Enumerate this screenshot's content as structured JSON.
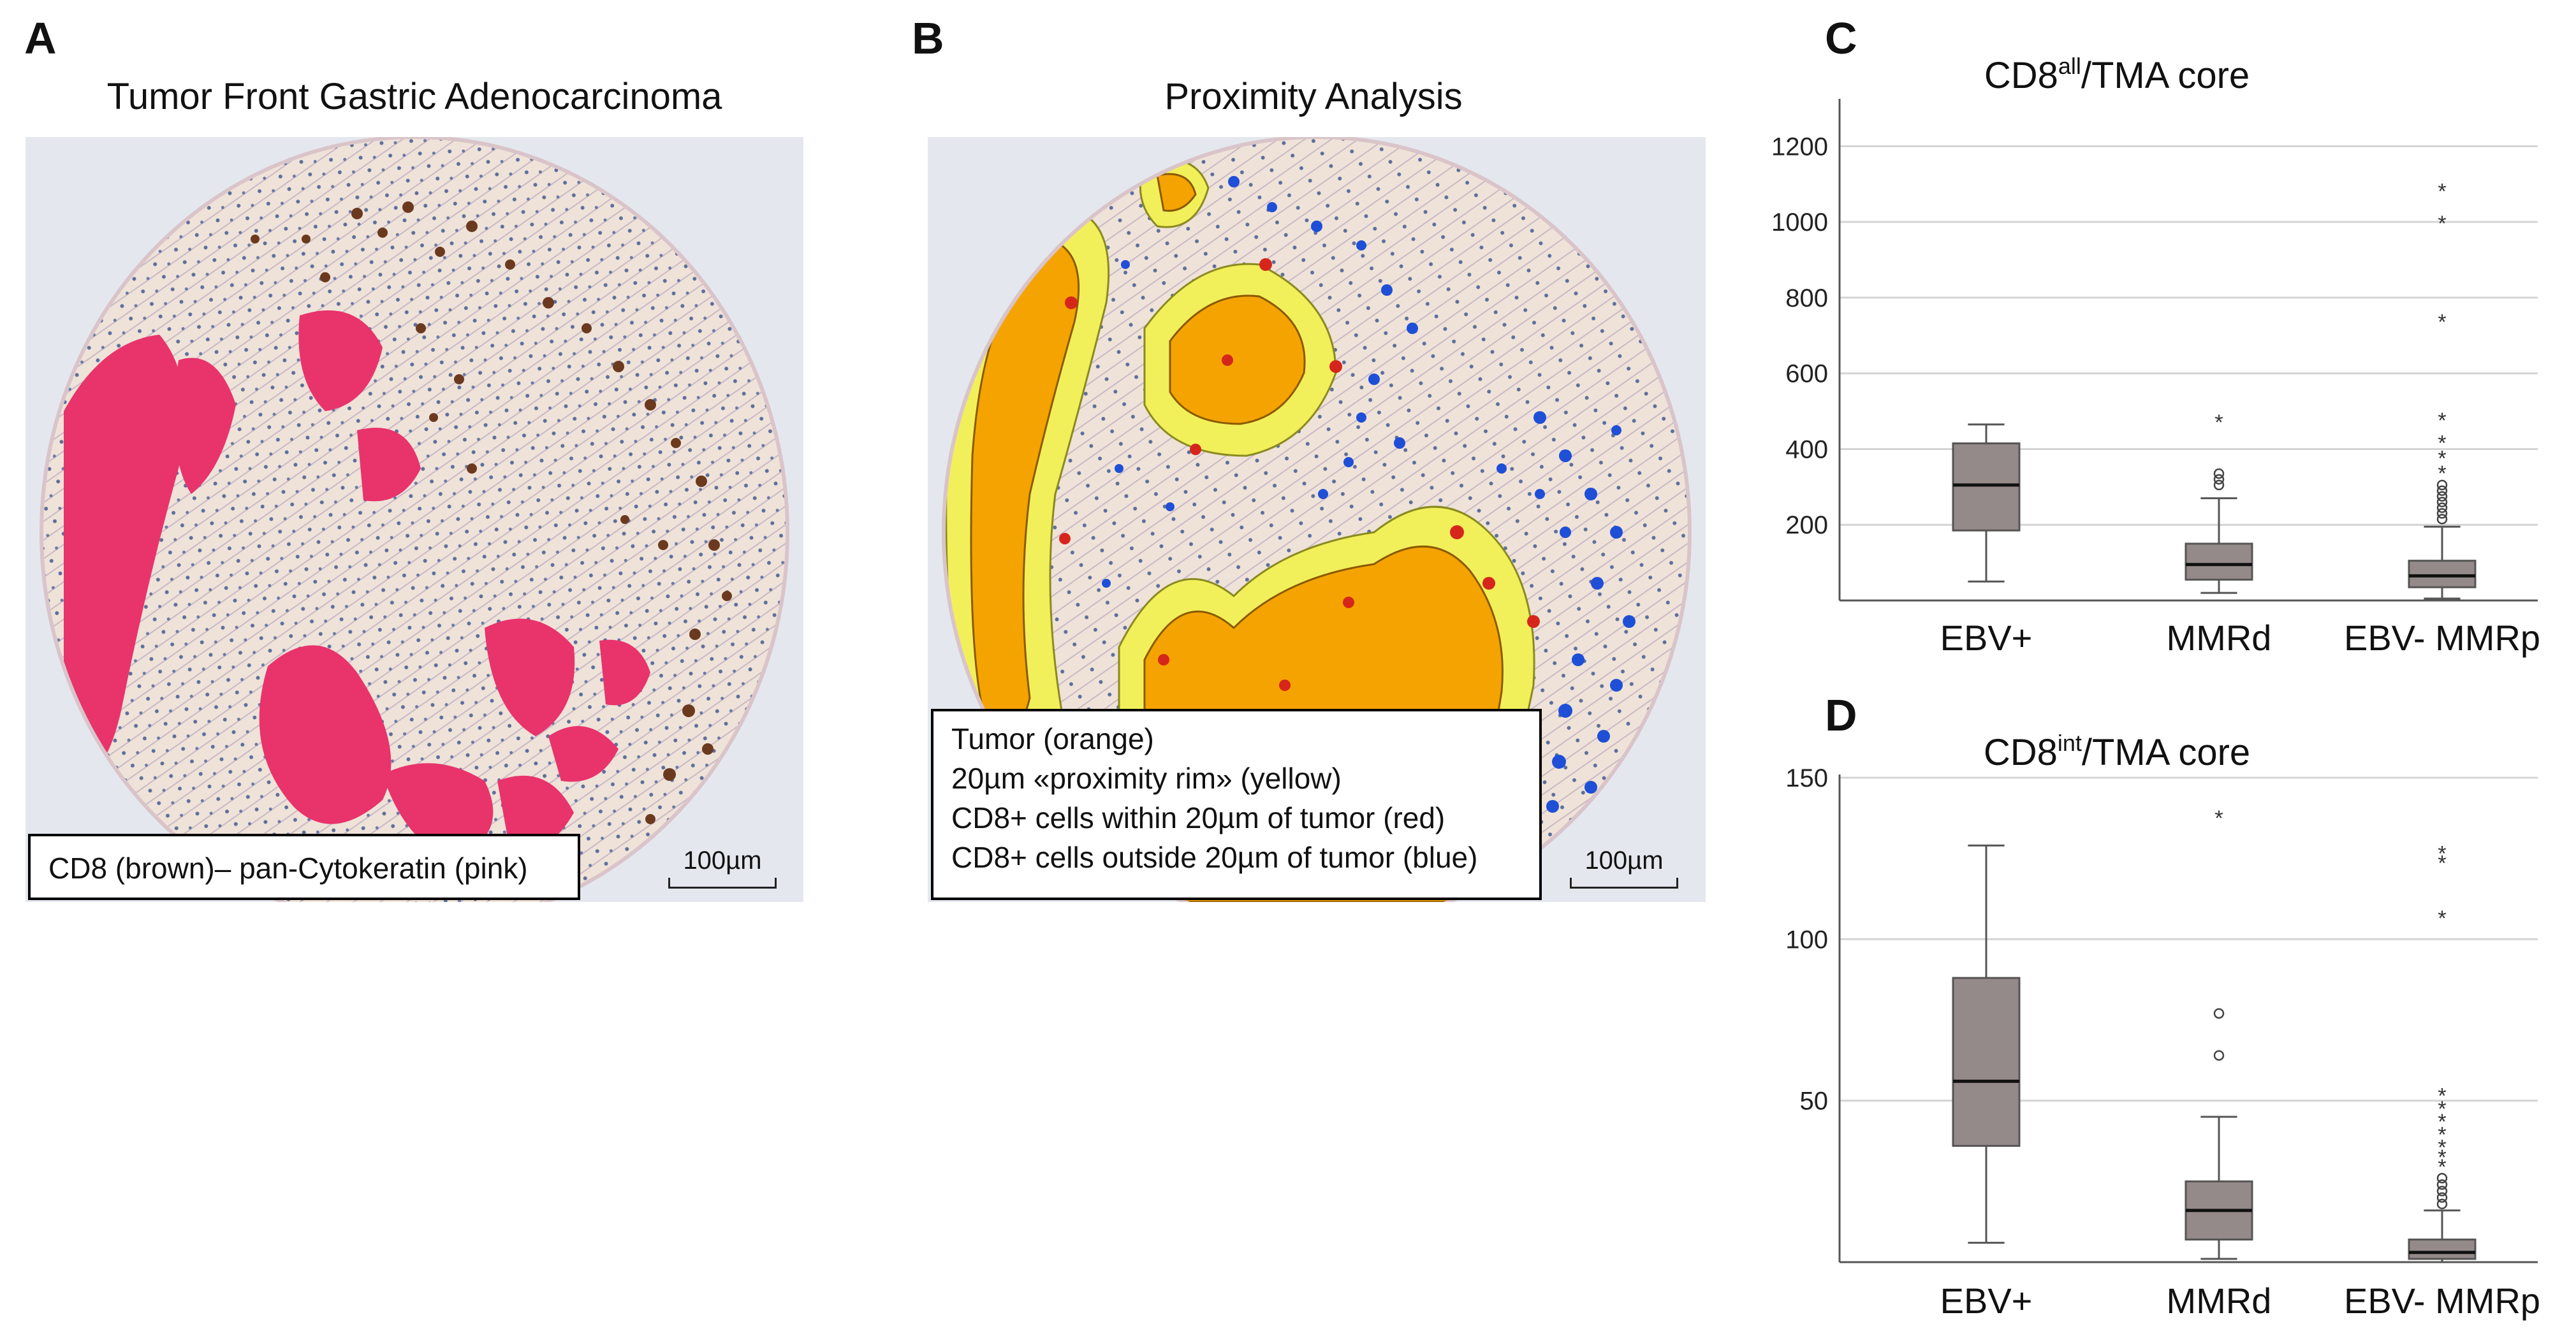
{
  "panels": {
    "A": {
      "letter": "A",
      "title": "Tumor Front Gastric Adenocarcinoma",
      "legend": "CD8 (brown)– pan-Cytokeratin (pink)",
      "scale": "100µm"
    },
    "B": {
      "letter": "B",
      "title": "Proximity Analysis",
      "legend": [
        "Tumor (orange)",
        "20µm «proximity rim» (yellow)",
        "CD8+ cells within 20µm of tumor (red)",
        "CD8+ cells outside 20µm of tumor (blue)"
      ],
      "scale": "100µm"
    },
    "C": {
      "letter": "C"
    },
    "D": {
      "letter": "D"
    }
  },
  "colors": {
    "tissue": "#efe3da",
    "pink": "#e8336b",
    "brown": "#6b3a1e",
    "orange": "#f5a300",
    "yellow": "#f2f05a",
    "red": "#d6261c",
    "blue": "#1e4fd6",
    "box": "#948a8a"
  },
  "chart_data": [
    {
      "type": "box",
      "title_main": "CD8",
      "title_sup": "all",
      "title_rest": "/TMA core",
      "ylim": [
        0,
        1300
      ],
      "yticks": [
        200,
        400,
        600,
        800,
        1000,
        1200
      ],
      "categories": [
        "EBV+",
        "MMRd",
        "EBV- MMRp"
      ],
      "boxes": [
        {
          "category": "EBV+",
          "min": 50,
          "q1": 185,
          "median": 305,
          "q3": 415,
          "max": 465,
          "outliers": [],
          "extremes": []
        },
        {
          "category": "MMRd",
          "min": 20,
          "q1": 55,
          "median": 95,
          "q3": 150,
          "max": 270,
          "outliers": [
            305,
            320,
            335
          ],
          "extremes": [
            475
          ]
        },
        {
          "category": "EBV- MMRp",
          "min": 5,
          "q1": 35,
          "median": 65,
          "q3": 105,
          "max": 195,
          "outliers": [
            215,
            230,
            245,
            260,
            275,
            290,
            305
          ],
          "extremes": [
            340,
            380,
            420,
            480,
            740,
            1000,
            1085
          ]
        }
      ]
    },
    {
      "type": "box",
      "title_main": "CD8",
      "title_sup": "int",
      "title_rest": "/TMA core",
      "ylim": [
        0,
        150
      ],
      "yticks": [
        50,
        100,
        150
      ],
      "categories": [
        "EBV+",
        "MMRd",
        "EBV- MMRp"
      ],
      "boxes": [
        {
          "category": "EBV+",
          "min": 6,
          "q1": 36,
          "median": 56,
          "q3": 88,
          "max": 129,
          "outliers": [],
          "extremes": []
        },
        {
          "category": "MMRd",
          "min": 1,
          "q1": 7,
          "median": 16,
          "q3": 25,
          "max": 45,
          "outliers": [
            64,
            77
          ],
          "extremes": [
            138
          ]
        },
        {
          "category": "EBV- MMRp",
          "min": 0,
          "q1": 1,
          "median": 3,
          "q3": 7,
          "max": 16,
          "outliers": [
            18,
            20,
            22,
            24,
            26
          ],
          "extremes": [
            30,
            33,
            36,
            40,
            44,
            48,
            52,
            107,
            124,
            127
          ]
        }
      ]
    }
  ]
}
